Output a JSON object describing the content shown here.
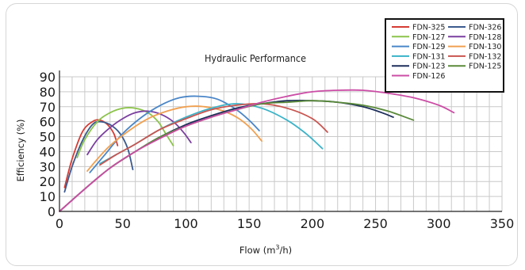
{
  "chart_data": {
    "type": "line",
    "title": "Hydraulic Performance",
    "xlabel": "Flow (m³/h)",
    "ylabel": "Efficiency (%)",
    "xlim": [
      0,
      350
    ],
    "ylim": [
      0,
      90
    ],
    "xticks": [
      0,
      50,
      100,
      150,
      200,
      250,
      300,
      350
    ],
    "yticks": [
      0,
      10,
      20,
      30,
      40,
      50,
      60,
      70,
      80,
      90
    ],
    "grid": true,
    "legend_position": "top-right",
    "series": [
      {
        "name": "FDN-325",
        "color": "#d63c34",
        "x": [
          4,
          10,
          18,
          26,
          32,
          38,
          43,
          46
        ],
        "y": [
          16,
          35,
          53,
          60,
          61,
          58,
          52,
          44
        ]
      },
      {
        "name": "FDN-326",
        "color": "#3b5a8e",
        "x": [
          4,
          10,
          18,
          26,
          32,
          40,
          48,
          54,
          58
        ],
        "y": [
          13,
          30,
          47,
          58,
          60,
          58,
          52,
          42,
          28
        ]
      },
      {
        "name": "FDN-127",
        "color": "#8bc34a",
        "x": [
          14,
          20,
          30,
          40,
          50,
          60,
          70,
          78,
          84,
          90
        ],
        "y": [
          36,
          48,
          60,
          66,
          69,
          69,
          66,
          60,
          52,
          44
        ]
      },
      {
        "name": "FDN-128",
        "color": "#7b3fa0",
        "x": [
          22,
          30,
          40,
          50,
          60,
          70,
          80,
          90,
          98,
          104
        ],
        "y": [
          38,
          48,
          56,
          62,
          66,
          67,
          65,
          60,
          53,
          46
        ]
      },
      {
        "name": "FDN-129",
        "color": "#4a86c8",
        "x": [
          24,
          35,
          50,
          65,
          80,
          95,
          110,
          125,
          140,
          150,
          158
        ],
        "y": [
          26,
          37,
          52,
          63,
          71,
          76,
          77,
          75,
          68,
          61,
          54
        ]
      },
      {
        "name": "FDN-130",
        "color": "#f0a050",
        "x": [
          22,
          30,
          40,
          55,
          70,
          85,
          100,
          115,
          130,
          142,
          152,
          160
        ],
        "y": [
          27,
          35,
          44,
          54,
          62,
          67,
          70,
          70,
          67,
          62,
          55,
          47
        ]
      },
      {
        "name": "FDN-131",
        "color": "#3bb3c8",
        "x": [
          32,
          45,
          60,
          80,
          100,
          120,
          140,
          160,
          180,
          195,
          208
        ],
        "y": [
          32,
          38,
          45,
          55,
          63,
          69,
          72,
          69,
          61,
          52,
          42
        ]
      },
      {
        "name": "FDN-132",
        "color": "#c9544f",
        "x": [
          32,
          45,
          60,
          80,
          100,
          120,
          140,
          160,
          180,
          200,
          212
        ],
        "y": [
          31,
          38,
          45,
          55,
          62,
          68,
          71,
          72,
          69,
          62,
          53
        ]
      },
      {
        "name": "FDN-123",
        "color": "#1e2f5c",
        "x": [
          0,
          20,
          40,
          60,
          80,
          100,
          120,
          140,
          160,
          180,
          200,
          220,
          240,
          255,
          264
        ],
        "y": [
          0,
          15,
          29,
          40,
          50,
          58,
          64,
          69,
          72,
          74,
          74,
          73,
          70,
          66,
          63
        ]
      },
      {
        "name": "FDN-125",
        "color": "#5a8a3a",
        "x": [
          0,
          20,
          40,
          60,
          80,
          100,
          120,
          140,
          160,
          180,
          200,
          220,
          240,
          260,
          280
        ],
        "y": [
          0,
          15,
          29,
          40,
          50,
          57,
          63,
          68,
          72,
          73,
          74,
          73,
          71,
          67,
          61
        ]
      },
      {
        "name": "FDN-126",
        "color": "#cc4da6",
        "x": [
          0,
          20,
          40,
          60,
          80,
          100,
          120,
          140,
          160,
          180,
          200,
          220,
          240,
          260,
          280,
          300,
          312
        ],
        "y": [
          0,
          15,
          29,
          40,
          49,
          57,
          63,
          68,
          73,
          77,
          80,
          81,
          81,
          79,
          76,
          71,
          66
        ]
      }
    ]
  }
}
